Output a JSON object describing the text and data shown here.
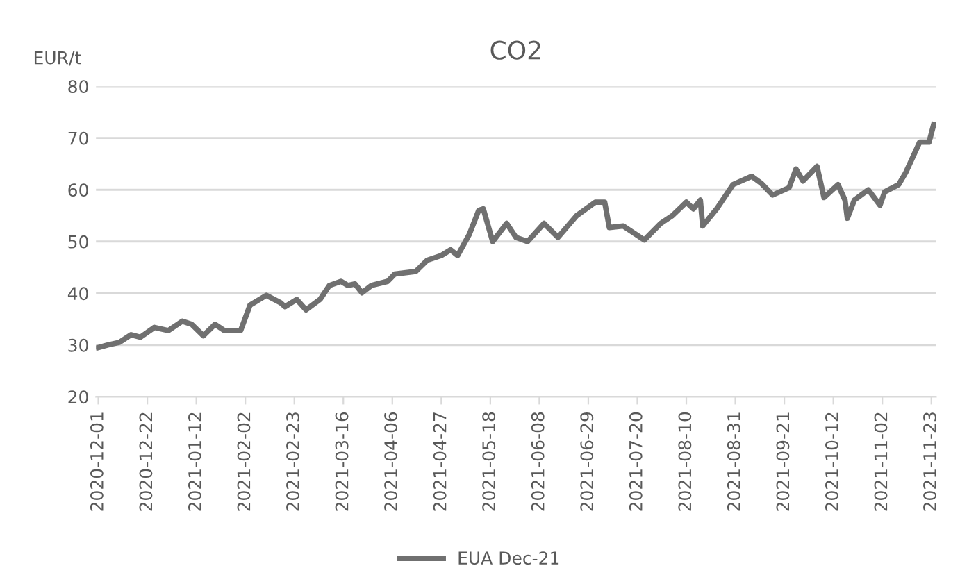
{
  "chart_data": {
    "type": "line",
    "title": "CO2",
    "ylabel": "EUR/t",
    "x": [
      "2020-12-01",
      "2020-12-05",
      "2020-12-10",
      "2020-12-15",
      "2020-12-19",
      "2020-12-25",
      "2020-12-31",
      "2021-01-06",
      "2021-01-10",
      "2021-01-15",
      "2021-01-20",
      "2021-01-24",
      "2021-01-31",
      "2021-02-04",
      "2021-02-11",
      "2021-02-17",
      "2021-02-19",
      "2021-02-24",
      "2021-02-28",
      "2021-03-06",
      "2021-03-10",
      "2021-03-15",
      "2021-03-18",
      "2021-03-21",
      "2021-03-24",
      "2021-03-28",
      "2021-04-04",
      "2021-04-07",
      "2021-04-16",
      "2021-04-21",
      "2021-04-27",
      "2021-05-01",
      "2021-05-04",
      "2021-05-09",
      "2021-05-13",
      "2021-05-15",
      "2021-05-19",
      "2021-05-25",
      "2021-05-29",
      "2021-06-03",
      "2021-06-10",
      "2021-06-16",
      "2021-06-24",
      "2021-07-02",
      "2021-07-06",
      "2021-07-08",
      "2021-07-14",
      "2021-07-23",
      "2021-07-30",
      "2021-08-04",
      "2021-08-10",
      "2021-08-13",
      "2021-08-16",
      "2021-08-17",
      "2021-08-23",
      "2021-08-30",
      "2021-09-07",
      "2021-09-11",
      "2021-09-16",
      "2021-09-23",
      "2021-09-26",
      "2021-09-29",
      "2021-10-05",
      "2021-10-08",
      "2021-10-14",
      "2021-10-17",
      "2021-10-18",
      "2021-10-21",
      "2021-10-27",
      "2021-11-01",
      "2021-11-03",
      "2021-11-09",
      "2021-11-12",
      "2021-11-18",
      "2021-11-22",
      "2021-11-24"
    ],
    "series": [
      {
        "name": "EUA Dec-21",
        "color": "#707070",
        "values": [
          29.5,
          30,
          30.5,
          32,
          31.5,
          33.4,
          32.8,
          34.6,
          34,
          31.8,
          34,
          32.8,
          32.8,
          37.7,
          39.6,
          38.2,
          37.4,
          38.8,
          36.8,
          38.8,
          41.5,
          42.3,
          41.5,
          41.8,
          40.1,
          41.5,
          42.3,
          43.7,
          44.2,
          46.4,
          47.3,
          48.4,
          47.3,
          51.4,
          56,
          56.3,
          50,
          53.5,
          50.8,
          50,
          53.5,
          50.8,
          55,
          57.6,
          57.6,
          52.7,
          53,
          50.3,
          53.5,
          55,
          57.6,
          56.3,
          58,
          53,
          56.3,
          61,
          62.6,
          61.3,
          59,
          60.4,
          64,
          61.7,
          64.5,
          58.5,
          61,
          58,
          54.5,
          58,
          60,
          57,
          59.6,
          61,
          63.3,
          69.2,
          69.2,
          72.6
        ]
      }
    ],
    "xlim": [
      "2020-11-30",
      "2021-11-25"
    ],
    "xticks": [
      "2020-12-01",
      "2020-12-22",
      "2021-01-12",
      "2021-02-02",
      "2021-02-23",
      "2021-03-16",
      "2021-04-06",
      "2021-04-27",
      "2021-05-18",
      "2021-06-08",
      "2021-06-29",
      "2021-07-20",
      "2021-08-10",
      "2021-08-31",
      "2021-09-21",
      "2021-10-12",
      "2021-11-02",
      "2021-11-23"
    ],
    "ylim": [
      20,
      80
    ],
    "yticks": [
      20,
      30,
      40,
      50,
      60,
      70,
      80
    ],
    "grid": "y",
    "legend": "bottom",
    "marker": "none",
    "line_style": "solid"
  }
}
